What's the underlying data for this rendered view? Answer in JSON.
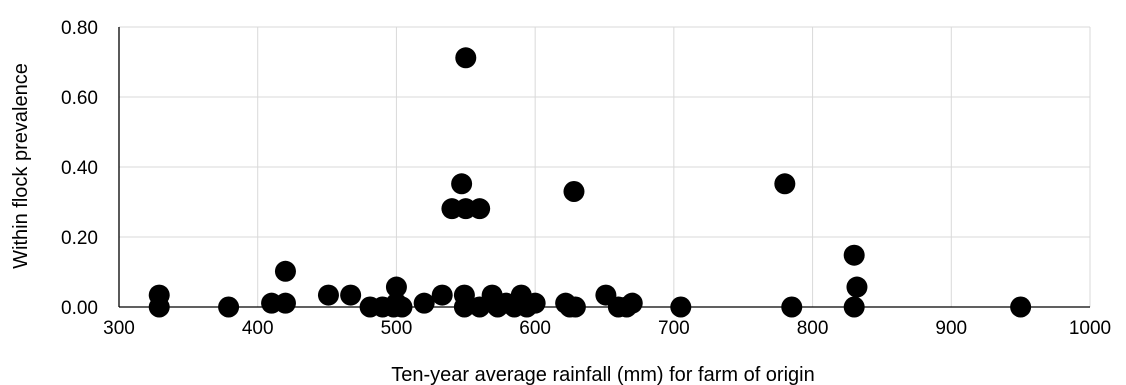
{
  "chart_data": {
    "type": "scatter",
    "title": "",
    "xlabel": "Ten-year average rainfall (mm) for farm of origin",
    "ylabel": "Within flock prevalence",
    "xlim": [
      300,
      1000
    ],
    "ylim": [
      0,
      0.8
    ],
    "x_ticks": [
      "300",
      "400",
      "500",
      "600",
      "700",
      "800",
      "900",
      "1000"
    ],
    "y_ticks": [
      "0.00",
      "0.20",
      "0.40",
      "0.60",
      "0.80"
    ],
    "grid": "vertical and horizontal major gridlines",
    "legend": "none",
    "marker_color": "#000000",
    "points": [
      {
        "x": 329,
        "y": 0.034
      },
      {
        "x": 329,
        "y": 0.0
      },
      {
        "x": 379,
        "y": 0.0
      },
      {
        "x": 410,
        "y": 0.011
      },
      {
        "x": 420,
        "y": 0.102
      },
      {
        "x": 420,
        "y": 0.011
      },
      {
        "x": 451,
        "y": 0.034
      },
      {
        "x": 467,
        "y": 0.034
      },
      {
        "x": 481,
        "y": 0.0
      },
      {
        "x": 490,
        "y": 0.0
      },
      {
        "x": 498,
        "y": 0.0
      },
      {
        "x": 500,
        "y": 0.057
      },
      {
        "x": 500,
        "y": 0.011
      },
      {
        "x": 504,
        "y": 0.0
      },
      {
        "x": 520,
        "y": 0.011
      },
      {
        "x": 533,
        "y": 0.034
      },
      {
        "x": 540,
        "y": 0.281
      },
      {
        "x": 547,
        "y": 0.352
      },
      {
        "x": 550,
        "y": 0.281
      },
      {
        "x": 550,
        "y": 0.712
      },
      {
        "x": 549,
        "y": 0.034
      },
      {
        "x": 549,
        "y": 0.0
      },
      {
        "x": 560,
        "y": 0.281
      },
      {
        "x": 560,
        "y": 0.0
      },
      {
        "x": 569,
        "y": 0.034
      },
      {
        "x": 573,
        "y": 0.0
      },
      {
        "x": 579,
        "y": 0.011
      },
      {
        "x": 585,
        "y": 0.0
      },
      {
        "x": 590,
        "y": 0.034
      },
      {
        "x": 594,
        "y": 0.0
      },
      {
        "x": 600,
        "y": 0.011
      },
      {
        "x": 622,
        "y": 0.011
      },
      {
        "x": 625,
        "y": 0.0
      },
      {
        "x": 628,
        "y": 0.33
      },
      {
        "x": 629,
        "y": 0.0
      },
      {
        "x": 651,
        "y": 0.034
      },
      {
        "x": 660,
        "y": 0.0
      },
      {
        "x": 666,
        "y": 0.0
      },
      {
        "x": 670,
        "y": 0.011
      },
      {
        "x": 705,
        "y": 0.0
      },
      {
        "x": 780,
        "y": 0.352
      },
      {
        "x": 785,
        "y": 0.0
      },
      {
        "x": 830,
        "y": 0.148
      },
      {
        "x": 832,
        "y": 0.057
      },
      {
        "x": 830,
        "y": 0.0
      },
      {
        "x": 950,
        "y": 0.0
      }
    ]
  }
}
